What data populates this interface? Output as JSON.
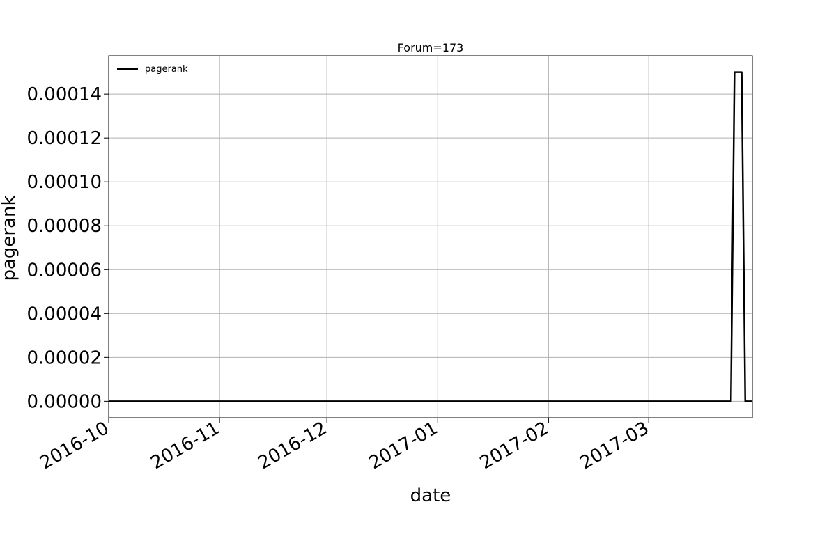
{
  "chart_data": {
    "type": "line",
    "title": "Forum=173",
    "xlabel": "date",
    "ylabel": "pagerank",
    "xlim": [
      "2016-10-01",
      "2017-03-30"
    ],
    "ylim": [
      -7.5e-06,
      0.0001575
    ],
    "x_ticks": [
      "2016-10",
      "2016-11",
      "2016-12",
      "2017-01",
      "2017-02",
      "2017-03"
    ],
    "y_ticks": [
      "0.00000",
      "0.00002",
      "0.00004",
      "0.00006",
      "0.00008",
      "0.00010",
      "0.00012",
      "0.00014"
    ],
    "grid": true,
    "legend": {
      "position": "upper-left",
      "entries": [
        "pagerank"
      ]
    },
    "series": [
      {
        "name": "pagerank",
        "color": "#000000",
        "x": [
          "2016-10-01",
          "2017-03-24",
          "2017-03-25",
          "2017-03-27",
          "2017-03-28",
          "2017-03-30"
        ],
        "y": [
          0.0,
          0.0,
          0.00015,
          0.00015,
          0.0,
          0.0
        ]
      }
    ]
  }
}
